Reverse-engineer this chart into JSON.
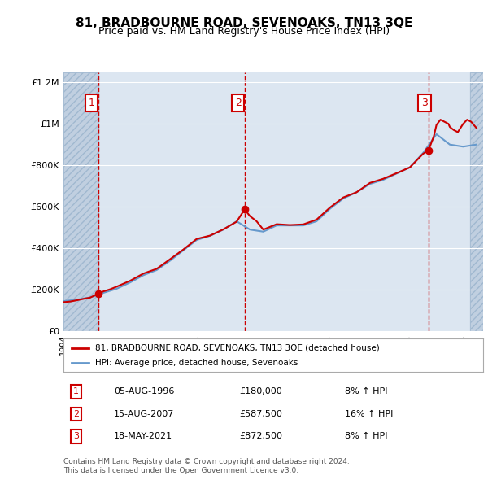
{
  "title": "81, BRADBOURNE ROAD, SEVENOAKS, TN13 3QE",
  "subtitle": "Price paid vs. HM Land Registry's House Price Index (HPI)",
  "ylabel_ticks": [
    "£0",
    "£200K",
    "£400K",
    "£600K",
    "£800K",
    "£1M",
    "£1.2M"
  ],
  "ytick_values": [
    0,
    200000,
    400000,
    600000,
    800000,
    1000000,
    1200000
  ],
  "ylim": [
    0,
    1250000
  ],
  "xlim_start": 1994.0,
  "xlim_end": 2025.5,
  "background_color": "#ffffff",
  "plot_bg_color": "#dce6f1",
  "hatch_color": "#c0cfe0",
  "grid_color": "#ffffff",
  "red_line_color": "#cc0000",
  "blue_line_color": "#6699cc",
  "sale_dates": [
    1996.6,
    2007.6,
    2021.4
  ],
  "sale_prices": [
    180000,
    587500,
    872500
  ],
  "sale_labels": [
    "1",
    "2",
    "3"
  ],
  "sale_date_strs": [
    "05-AUG-1996",
    "15-AUG-2007",
    "18-MAY-2021"
  ],
  "sale_price_strs": [
    "£180,000",
    "£587,500",
    "£872,500"
  ],
  "sale_hpi_strs": [
    "8% ↑ HPI",
    "16% ↑ HPI",
    "8% ↑ HPI"
  ],
  "legend_line1": "81, BRADBOURNE ROAD, SEVENOAKS, TN13 3QE (detached house)",
  "legend_line2": "HPI: Average price, detached house, Sevenoaks",
  "footnote": "Contains HM Land Registry data © Crown copyright and database right 2024.\nThis data is licensed under the Open Government Licence v3.0.",
  "hpi_years": [
    1994,
    1995,
    1996,
    1997,
    1998,
    1999,
    2000,
    2001,
    2002,
    2003,
    2004,
    2005,
    2006,
    2007,
    2008,
    2009,
    2010,
    2011,
    2012,
    2013,
    2014,
    2015,
    2016,
    2017,
    2018,
    2019,
    2020,
    2021,
    2022,
    2023,
    2024,
    2025
  ],
  "hpi_values": [
    145000,
    152000,
    163000,
    185000,
    205000,
    235000,
    270000,
    295000,
    340000,
    390000,
    440000,
    460000,
    490000,
    530000,
    490000,
    480000,
    510000,
    510000,
    510000,
    530000,
    590000,
    640000,
    670000,
    710000,
    730000,
    760000,
    790000,
    860000,
    950000,
    900000,
    890000,
    900000
  ],
  "price_years": [
    1994.0,
    1994.5,
    1995.0,
    1995.5,
    1996.0,
    1996.6,
    1997.0,
    1997.5,
    1998.0,
    1999.0,
    2000.0,
    2001.0,
    2002.0,
    2003.0,
    2004.0,
    2005.0,
    2006.0,
    2007.0,
    2007.6,
    2008.0,
    2008.5,
    2009.0,
    2010.0,
    2011.0,
    2012.0,
    2013.0,
    2014.0,
    2015.0,
    2016.0,
    2017.0,
    2018.0,
    2019.0,
    2020.0,
    2021.0,
    2021.4,
    2021.8,
    2022.0,
    2022.3,
    2022.6,
    2022.9,
    2023.0,
    2023.3,
    2023.6,
    2024.0,
    2024.3,
    2024.6,
    2025.0
  ],
  "price_values": [
    140000,
    143000,
    149000,
    156000,
    162000,
    180000,
    192000,
    202000,
    215000,
    243000,
    278000,
    301000,
    347000,
    394000,
    445000,
    461000,
    491000,
    528000,
    587500,
    555000,
    530000,
    490000,
    516000,
    512000,
    515000,
    538000,
    596000,
    645000,
    670000,
    715000,
    735000,
    762000,
    790000,
    856000,
    872500,
    940000,
    995000,
    1020000,
    1010000,
    1000000,
    985000,
    970000,
    960000,
    1000000,
    1020000,
    1010000,
    980000
  ]
}
